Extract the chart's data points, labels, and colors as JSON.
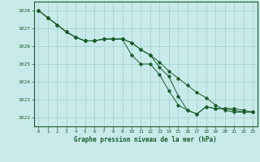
{
  "line1": [
    1028.0,
    1027.6,
    1027.2,
    1026.8,
    1026.5,
    1026.3,
    1026.3,
    1026.4,
    1026.4,
    1026.4,
    1025.5,
    1025.0,
    1025.0,
    1024.4,
    1023.5,
    1022.7,
    1022.4,
    1022.2,
    1022.6,
    1022.5,
    1022.5,
    1022.4,
    1022.3,
    1022.3
  ],
  "line2": [
    1028.0,
    1027.6,
    1027.2,
    1026.8,
    1026.5,
    1026.3,
    1026.3,
    1026.4,
    1026.4,
    1026.4,
    1026.2,
    1025.8,
    1025.5,
    1025.1,
    1024.6,
    1024.2,
    1023.8,
    1023.4,
    1023.1,
    1022.7,
    1022.4,
    1022.3,
    1022.3,
    1022.3
  ],
  "line3": [
    1028.0,
    1027.6,
    1027.2,
    1026.8,
    1026.5,
    1026.3,
    1026.3,
    1026.4,
    1026.4,
    1026.4,
    1026.2,
    1025.8,
    1025.5,
    1024.8,
    1024.3,
    1023.2,
    1022.4,
    1022.2,
    1022.6,
    1022.5,
    1022.5,
    1022.5,
    1022.4,
    1022.3
  ],
  "bg_color": "#c8eaea",
  "line_color": "#1a5c2a",
  "grid_color": "#a0cece",
  "tick_label_color": "#1a5c2a",
  "xlabel": "Graphe pression niveau de la mer (hPa)",
  "xlabel_color": "#1a5c2a",
  "ylim": [
    1021.5,
    1028.5
  ],
  "xlim": [
    -0.5,
    23.5
  ],
  "yticks": [
    1022,
    1023,
    1024,
    1025,
    1026,
    1027,
    1028
  ],
  "xticks": [
    0,
    1,
    2,
    3,
    4,
    5,
    6,
    7,
    8,
    9,
    10,
    11,
    12,
    13,
    14,
    15,
    16,
    17,
    18,
    19,
    20,
    21,
    22,
    23
  ]
}
